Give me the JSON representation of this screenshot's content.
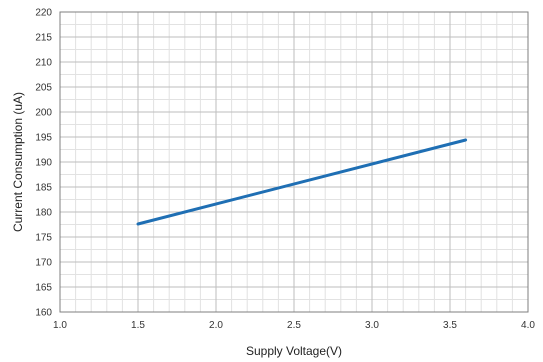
{
  "chart_data": {
    "type": "line",
    "xlabel": "Supply Voltage(V)",
    "ylabel": "Current Consumption (uA)",
    "xlim": [
      1.0,
      4.0
    ],
    "ylim": [
      160,
      220
    ],
    "x_ticks": [
      "1.0",
      "1.5",
      "2.0",
      "2.5",
      "3.0",
      "3.5",
      "4.0"
    ],
    "y_ticks": [
      "160",
      "165",
      "170",
      "175",
      "180",
      "185",
      "190",
      "195",
      "200",
      "205",
      "210",
      "215",
      "220"
    ],
    "x_minor_step": 0.1,
    "y_minor_step": 2.5,
    "grid": true,
    "series": [
      {
        "color": "#1f6fb4",
        "x": [
          1.5,
          3.6
        ],
        "y": [
          177.6,
          194.4
        ]
      }
    ]
  }
}
